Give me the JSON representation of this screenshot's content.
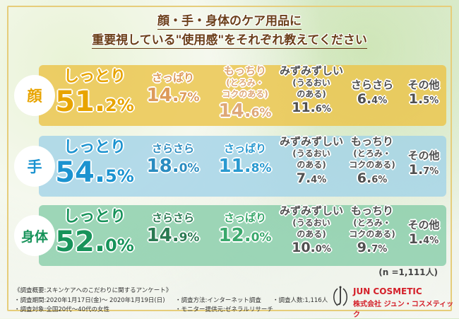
{
  "title": {
    "line1": "顔・手・身体のケア用品に",
    "line2": "重要視している\"使用感\"をそれぞれ教えてください"
  },
  "colors": {
    "face": "#e8a400",
    "hand": "#1b93d0",
    "body": "#17935a",
    "neutral": "#505050"
  },
  "rows": [
    {
      "label": "顔",
      "items": [
        {
          "label": "しっとり",
          "value": "51.2%"
        },
        {
          "label": "さっぱり",
          "value": "14.7%"
        },
        {
          "label": "もっちり",
          "sub1": "(とろみ・",
          "sub2": "コクのある)",
          "value": "14.6%"
        },
        {
          "label": "みずみずしい",
          "sub1": "(うるおい",
          "sub2": "のある)",
          "value": "11.6%"
        },
        {
          "label": "さらさら",
          "value": "6.4%"
        },
        {
          "label": "その他",
          "value": "1.5%"
        }
      ]
    },
    {
      "label": "手",
      "items": [
        {
          "label": "しっとり",
          "value": "54.5%"
        },
        {
          "label": "さらさら",
          "value": "18.0%"
        },
        {
          "label": "さっぱり",
          "value": "11.8%"
        },
        {
          "label": "みずみずしい",
          "sub1": "(うるおい",
          "sub2": "のある)",
          "value": "7.4%"
        },
        {
          "label": "もっちり",
          "sub1": "(とろみ・",
          "sub2": "コクのある)",
          "value": "6.6%"
        },
        {
          "label": "その他",
          "value": "1.7%"
        }
      ]
    },
    {
      "label": "身体",
      "items": [
        {
          "label": "しっとり",
          "value": "52.0%"
        },
        {
          "label": "さらさら",
          "value": "14.9%"
        },
        {
          "label": "さっぱり",
          "value": "12.0%"
        },
        {
          "label": "みずみずしい",
          "sub1": "(うるおい",
          "sub2": "のある)",
          "value": "10.0%"
        },
        {
          "label": "もっちり",
          "sub1": "(とろみ・",
          "sub2": "コクのある)",
          "value": "9.7%"
        },
        {
          "label": "その他",
          "value": "1.4%"
        }
      ]
    }
  ],
  "sample": "(n =1,111人)",
  "footer": {
    "heading": "《調査概要:スキンケアへのこだわりに関するアンケート》",
    "period": "・調査期間:2020年1月17日(金)～ 2020年1月19日(日)",
    "target": "・調査対象:全国20代～40代の女性",
    "method": "・調査方法:インターネット調査",
    "provider": "・モニター提供元:ゼネラルリサーチ",
    "count": "・調査人数:1,116人"
  },
  "brand": {
    "name": "JUN COSMETIC",
    "company": "株式会社 ジュン・コスメティック"
  }
}
